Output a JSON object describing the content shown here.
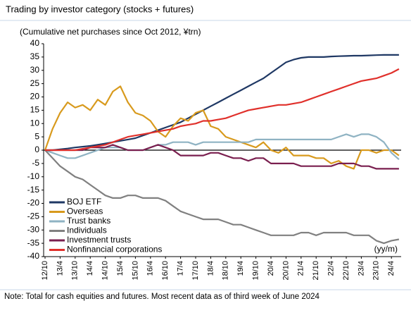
{
  "chart_data": {
    "type": "line",
    "title": "Trading by investor category (stocks + futures)",
    "subtitle": "(Cumulative net purchases since Oct 2012, ¥trn)",
    "x_label": "(yy/m)",
    "note": "Note: Total for cash equities and futures. Most recent data as of third week of June 2024",
    "categories": [
      "12/10",
      null,
      "13/4",
      null,
      "13/10",
      null,
      "14/4",
      null,
      "14/10",
      null,
      "15/4",
      null,
      "15/10",
      null,
      "16/4",
      null,
      "16/10",
      null,
      "17/4",
      null,
      "17/10",
      null,
      "18/4",
      null,
      "18/10",
      null,
      "19/4",
      null,
      "19/10",
      null,
      "20/4",
      null,
      "20/10",
      null,
      "21/4",
      null,
      "21/10",
      null,
      "22/4",
      null,
      "22/10",
      null,
      "23/4",
      null,
      "23/10",
      null,
      "24/4",
      null
    ],
    "ylim": [
      -40,
      40
    ],
    "yticks": [
      40,
      35,
      30,
      25,
      20,
      15,
      10,
      5,
      0,
      -5,
      -10,
      -15,
      -20,
      -25,
      -30,
      -35,
      -40
    ],
    "grid": false,
    "legend": "lower left",
    "series": [
      {
        "name": "BOJ ETF",
        "color": "#1f3864",
        "values": [
          0,
          0,
          0.3,
          0.6,
          1,
          1.3,
          1.6,
          2,
          2.5,
          3,
          3.5,
          4,
          4.5,
          5.5,
          6.5,
          7.5,
          8.5,
          9.5,
          10.5,
          12,
          13.5,
          15,
          16.5,
          18,
          19.5,
          21,
          22.5,
          24,
          25.5,
          27,
          29,
          31,
          33,
          34,
          34.7,
          35,
          35,
          35,
          35.2,
          35.3,
          35.4,
          35.5,
          35.5,
          35.6,
          35.7,
          35.8,
          35.8,
          35.8
        ]
      },
      {
        "name": "Overseas",
        "color": "#d89a1d",
        "values": [
          0,
          8,
          14,
          18,
          16,
          17,
          15,
          19,
          17,
          22,
          24,
          18,
          14,
          13,
          11,
          7,
          5,
          9,
          12,
          11,
          14,
          15,
          9,
          8,
          5,
          4,
          3,
          2,
          1,
          3,
          0,
          -1,
          1,
          -2,
          -2,
          -2,
          -3,
          -3,
          -5,
          -4,
          -6,
          -7,
          0,
          0,
          -1,
          0,
          0,
          -2
        ]
      },
      {
        "name": "Trust banks",
        "color": "#8fb3c3",
        "values": [
          0,
          -1,
          -2,
          -3,
          -3,
          -2,
          -1,
          0,
          1,
          1,
          1,
          0,
          0,
          0,
          1,
          2,
          2,
          3,
          3,
          3,
          2,
          3,
          3,
          3,
          3,
          3,
          3,
          3,
          4,
          4,
          4,
          4,
          4,
          4,
          4,
          4,
          4,
          4,
          4,
          5,
          6,
          5,
          6,
          6,
          5,
          3,
          -1,
          -3.5
        ]
      },
      {
        "name": "Individuals",
        "color": "#808080",
        "values": [
          0,
          -3,
          -6,
          -8,
          -10,
          -11,
          -13,
          -15,
          -17,
          -18,
          -18,
          -17,
          -17,
          -18,
          -18,
          -18,
          -19,
          -21,
          -23,
          -24,
          -25,
          -26,
          -26,
          -26,
          -27,
          -28,
          -28,
          -29,
          -30,
          -31,
          -32,
          -32,
          -32,
          -32,
          -31,
          -31,
          -32,
          -31,
          -31,
          -31,
          -31,
          -32,
          -32,
          -32,
          -34,
          -35,
          -34,
          -33.5
        ]
      },
      {
        "name": "Investment trusts",
        "color": "#7a1f4f",
        "values": [
          0,
          0,
          0,
          0,
          0,
          0,
          1,
          1,
          1,
          2,
          1,
          0,
          0,
          0,
          1,
          2,
          1,
          0,
          -2,
          -2,
          -2,
          -2,
          -1,
          -1,
          -2,
          -3,
          -3,
          -4,
          -3,
          -3,
          -5,
          -5,
          -5,
          -5,
          -6,
          -6,
          -6,
          -6,
          -6,
          -5,
          -5,
          -5,
          -6,
          -6,
          -7,
          -7,
          -7,
          -7
        ]
      },
      {
        "name": "Nonfinancial corporations",
        "color": "#e0302b",
        "values": [
          0,
          0,
          0,
          0,
          0,
          0.5,
          1,
          1.5,
          2,
          3,
          4,
          5,
          5.5,
          6,
          6.5,
          7,
          7.5,
          8,
          9,
          9.5,
          10,
          11,
          11,
          11.5,
          12,
          13,
          14,
          15,
          15.5,
          16,
          16.5,
          17,
          17,
          17.5,
          18,
          19,
          20,
          21,
          22,
          23,
          24,
          25,
          26,
          26.5,
          27,
          28,
          29,
          30.5
        ]
      }
    ]
  }
}
